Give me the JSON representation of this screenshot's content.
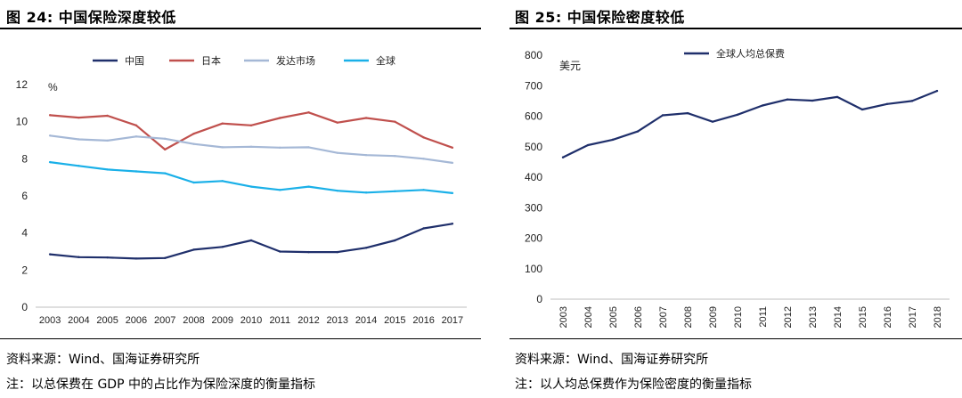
{
  "left": {
    "fig_title": "图 24:  中国保险深度较低",
    "source": "资料来源：Wind、国海证券研究所",
    "note": "注：以总保费在 GDP 中的占比作为保险深度的衡量指标"
  },
  "right": {
    "fig_title": "图 25:  中国保险密度较低",
    "source": "资料来源：Wind、国海证券研究所",
    "note": "注：以人均总保费作为保险密度的衡量指标"
  },
  "chart_data": [
    {
      "type": "line",
      "title": "图 24:  中国保险深度较低",
      "ylabel": "%",
      "xlabel": "",
      "ylim": [
        0,
        12
      ],
      "yticks": [
        0,
        2,
        4,
        6,
        8,
        10,
        12
      ],
      "grid": false,
      "legend_position": "top-center",
      "x": [
        "2003",
        "2004",
        "2005",
        "2006",
        "2007",
        "2008",
        "2009",
        "2010",
        "2011",
        "2012",
        "2013",
        "2014",
        "2015",
        "2016",
        "2017"
      ],
      "series": [
        {
          "name": "中国",
          "color": "#1f2f6b",
          "values": [
            2.85,
            2.7,
            2.68,
            2.62,
            2.65,
            3.1,
            3.25,
            3.6,
            3.0,
            2.97,
            2.97,
            3.2,
            3.6,
            4.25,
            4.5
          ]
        },
        {
          "name": "日本",
          "color": "#c0504d",
          "values": [
            10.35,
            10.22,
            10.32,
            9.8,
            8.5,
            9.35,
            9.9,
            9.8,
            10.2,
            10.5,
            9.95,
            10.2,
            10.0,
            9.15,
            8.6
          ]
        },
        {
          "name": "发达市场",
          "color": "#a5b8d6",
          "values": [
            9.25,
            9.05,
            8.98,
            9.2,
            9.08,
            8.8,
            8.62,
            8.65,
            8.6,
            8.62,
            8.32,
            8.2,
            8.15,
            8.0,
            7.78
          ]
        },
        {
          "name": "全球",
          "color": "#1ab0e8",
          "values": [
            7.82,
            7.62,
            7.42,
            7.32,
            7.22,
            6.72,
            6.8,
            6.5,
            6.32,
            6.5,
            6.28,
            6.18,
            6.25,
            6.32,
            6.15
          ]
        }
      ]
    },
    {
      "type": "line",
      "title": "图 25:  中国保险密度较低",
      "ylabel": "美元",
      "xlabel": "",
      "ylim": [
        0,
        800
      ],
      "yticks": [
        0,
        100,
        200,
        300,
        400,
        500,
        600,
        700,
        800
      ],
      "grid": false,
      "legend_position": "top-left",
      "x": [
        "2003",
        "2004",
        "2005",
        "2006",
        "2007",
        "2008",
        "2009",
        "2010",
        "2011",
        "2012",
        "2013",
        "2014",
        "2015",
        "2016",
        "2017",
        "2018"
      ],
      "series": [
        {
          "name": "全球人均总保费",
          "color": "#1f2f6b",
          "values": [
            465,
            505,
            523,
            550,
            603,
            610,
            582,
            605,
            635,
            655,
            651,
            663,
            622,
            640,
            650,
            683
          ]
        }
      ]
    }
  ]
}
